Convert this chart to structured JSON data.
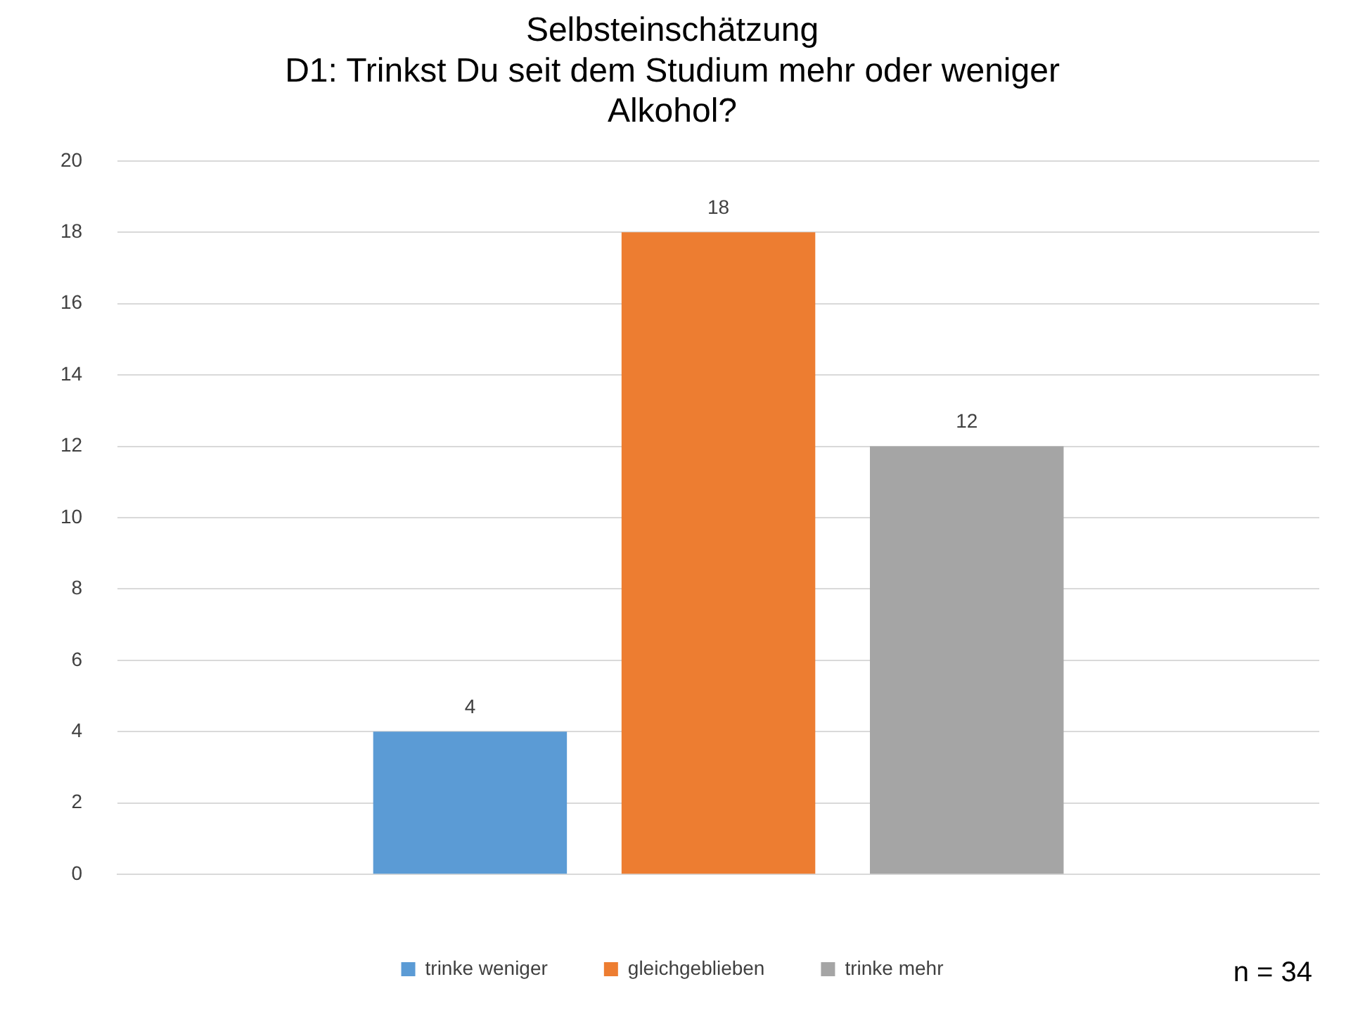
{
  "chart_data": {
    "type": "bar",
    "title": "Selbsteinschätzung\nD1: Trinkst Du seit dem Studium mehr oder weniger Alkohol?",
    "categories": [
      null
    ],
    "series": [
      {
        "name": "trinke weniger",
        "color": "#5b9bd5",
        "values": [
          4
        ]
      },
      {
        "name": "gleichgeblieben",
        "color": "#ed7d31",
        "values": [
          18
        ]
      },
      {
        "name": "trinke mehr",
        "color": "#a5a5a5",
        "values": [
          12
        ]
      }
    ],
    "ylim": [
      0,
      20
    ],
    "yticks": [
      0,
      2,
      4,
      6,
      8,
      10,
      12,
      14,
      16,
      18,
      20
    ],
    "grid": "y",
    "legend": "bottom",
    "data_labels": true,
    "annotations": [
      "n = 34"
    ]
  }
}
